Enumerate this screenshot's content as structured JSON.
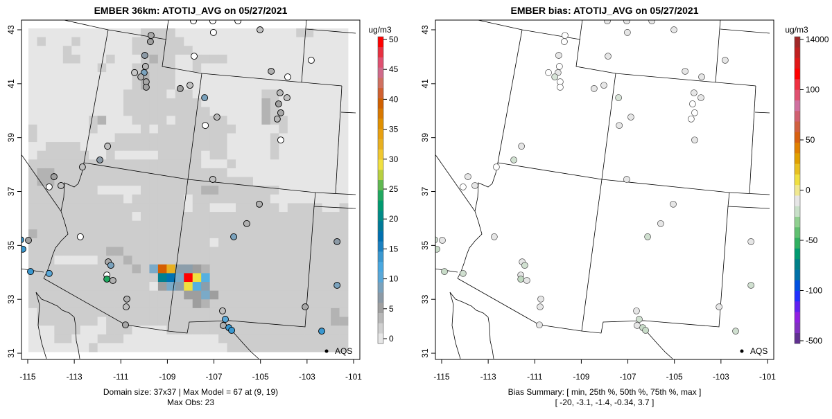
{
  "panels": [
    {
      "title": "EMBER 36km: ATOTIJ_AVG on 05/27/2021",
      "caption_lines": [
        "Domain size: 37x37 | Max Model = 67 at (9, 19)",
        "Max Obs: 23"
      ],
      "legend_label": "AQS",
      "colorbar": {
        "unit": "ug/m3",
        "labels": [
          "0",
          "5",
          "10",
          "15",
          "20",
          "25",
          "30",
          "35",
          "40",
          "45",
          "50"
        ],
        "colors": [
          "#e6e6e6",
          "#d0d0d0",
          "#b8b8b8",
          "#a0a0a0",
          "#8c9aa6",
          "#7aa2bd",
          "#5aa8d8",
          "#4aa8e0",
          "#3a98d0",
          "#1a80c0",
          "#0070b0",
          "#007a98",
          "#008a88",
          "#009a70",
          "#20a860",
          "#60b850",
          "#b8d040",
          "#f0e040",
          "#f0c830",
          "#e8b020",
          "#e8a010",
          "#e09000",
          "#d87800",
          "#d06000",
          "#d06030",
          "#d07060",
          "#d06a8a",
          "#e05070",
          "#e83040",
          "#ff0000"
        ]
      }
    },
    {
      "title": "EMBER bias: ATOTIJ_AVG on 05/27/2021",
      "caption_lines": [
        "Bias Summary: [ min, 25th %, 50th %, 75th %, max ]",
        "[ -20,  -3.1,  -1.4,  -0.34,  3.7 ]"
      ],
      "legend_label": "AQS",
      "colorbar": {
        "unit": "ug/m3",
        "labels": [
          "-500",
          "-100",
          "-50",
          "0",
          "50",
          "100",
          "14000"
        ],
        "colors": [
          "#603090",
          "#8030c0",
          "#9020e0",
          "#6020f0",
          "#2030ff",
          "#0050e0",
          "#0070a8",
          "#008088",
          "#009a70",
          "#30b060",
          "#60c070",
          "#90d090",
          "#c8e0c8",
          "#e6e6e6",
          "#f0e890",
          "#f0e040",
          "#e8c020",
          "#e0a000",
          "#e08000",
          "#d86010",
          "#d06040",
          "#d06070",
          "#d070a0",
          "#e05070",
          "#f03040",
          "#ff0000",
          "#e01818",
          "#c02020",
          "#a02828"
        ]
      }
    }
  ],
  "chart_data": {
    "type": "heatmap",
    "x_ticks": [
      "-115",
      "-113",
      "-111",
      "-109",
      "-107",
      "-105",
      "-103",
      "-101"
    ],
    "y_ticks": [
      "31",
      "33",
      "35",
      "37",
      "39",
      "41",
      "43"
    ],
    "xlim": [
      -115.27,
      -100.74
    ],
    "ylim": [
      30.77,
      43.36
    ],
    "grid_legend": {
      "a": 0.5,
      "b": 2,
      "c": 4,
      "d": 5.5,
      "e": 7,
      "f": 9,
      "g": 12,
      "h": 17,
      "i": 20,
      "j": 28,
      "k": 33,
      "l": 40,
      "m": 50
    },
    "grid_colors": {
      "a": "#e6e6e6",
      "b": "#cdcdcd",
      "c": "#b3b3b3",
      "d": "#9e9e9e",
      "e": "#8c9eab",
      "f": "#7aaac8",
      "g": "#56b0e0",
      "h": "#0072b2",
      "i": "#00808f",
      "j": "#f0e040",
      "k": "#e8b020",
      "l": "#d55e00",
      "m": "#ff0000"
    },
    "grid_rows": [
      "aaaaaaaaaaaaabbbbaaaaaaaaaaaaaabbaaaa",
      "abaaabaaaaaabbbbbbaaaaaaaaaaaaaaaaaaa",
      "aaaabaaaaaaabbbbbbbaaaaaaaaaaaaaaaaaa",
      "aaaabbaaabaaabcbbaabbbbaaaaaaaaaaaaaa",
      "aaaaaaaabaaabbbbbaabaaaaaaaaaaaaaaaaa",
      "aaaaaaaaaaaabcbbbaaaaaaaaaaaaaaaaaaaa",
      "aaaaaaaaaaaabcbbbaaaaaaaaaaaaaaaaaaaa",
      "aaaaaaaaaaabbbbbabbaaaaaaaabbaaaaaaaa",
      "aaaaaaaaaaabbbbbbbbbaaaaaaacbaaaaaaaa",
      "aaaaaaaaaaabbbbbbbbbbaaaaaacbaaaaaaaa",
      "aaaaaaabcaaabbbbabbbbbbaaaacbbaaaaaaa",
      "baaaaaabaaaaababbbbbbbbbaaaaabaaaaaaa",
      "baaaaaaaaabbbbbbbbbbbbbaaaaabaaaaaaaa",
      "aabbbbaaabbbbbbbbbbbbbbaaaaabaaaaaaaa",
      "abbbbbbaabaaaaabbbbbabbaaaaabaaaaaaaa",
      "bbbbbbbbbbbbbbbbbbbbaaabaaaaaaaaaaaaa",
      "bccbbbbbbbbbbbbbbbbbbbbaaaaaaaaaaaaaa",
      "bccbbbbbbbbbbbbbbbbbbbbbbbaaaaaaaaaaa",
      "bbbbbbbbaaaaabbbbbbbccbbbbbbbaaaaaaaa",
      "bbbbbbbbbbbabbbbbbabbbbbbbbbaaaaaaaaa",
      "bbbbbbbbbbbbbbbbbbabbaaabbbbbabbbbaab",
      "bbbbbbbbbbbbabbbbbbbbbbbbbbbbbbbbbbbb",
      "bbbbbbbbbbbbbbbbbbbbbbbbbbbbbbbbbbbbb",
      "cbbbbbbbbbbbbbbbbbbbbbbbbbbbbbbbbbbbb",
      "bbbbbbbbbbbbbbbbbbbbbabbbbbbbbbbbbbbb",
      "bbbbbbbbbccbbbbbbbbbbbbbbbbbbbbbbbbbb",
      "bbbaaaaabbbcbbbbbbbbbbbbbbbbbbbbbbbbb",
      "bbbbbbbbbbbbcbflkeedcbbbbbbbbbbbbbbbb",
      "bbbbbbbbbbbbbbbihfmjgbbbbbbbbbbbbbbbb",
      "bbbbbbbbbbbbbbadfejgebbbbbbbbbbbbbbbb",
      "bbbbbbbbbbbbbbbbbbddfdbbbbbbbbbbbbbbb",
      "bbbbbbbbbbbbbbbbbbbdcbbbbbbbbbbbbbbbb",
      "abbbbbbbbbbbbbbbbbbbbbbbbbbbbbbbbbbcb",
      "abbbbbbbabbbbbbbbbbbbbbbbbbbbbbbbbbcc",
      "aaabbbaaabbbaaaabbbbbbbbbbbbbbbbbbbbb",
      "aaabbaaabbbaaaaaaaaaaabbbbbbbbbbbbbbb",
      "aaaaaaabaaaaaaaaaaaaaaabbbbbbbbbbbbbb"
    ],
    "stations": [
      {
        "lon": -107.88,
        "lat": 43.33,
        "obs": "#ffffff",
        "bias": "#e6e6e6"
      },
      {
        "lon": -107.05,
        "lat": 43.33,
        "obs": "#ffffff",
        "bias": "#e6e6e6"
      },
      {
        "lon": -105.97,
        "lat": 43.33,
        "obs": "#ffffff",
        "bias": "#e6e6e6"
      },
      {
        "lon": -105.02,
        "lat": 43.0,
        "obs": "#c0c0c0",
        "bias": "#e6e6e6"
      },
      {
        "lon": -107.02,
        "lat": 42.9,
        "obs": "#ffffff",
        "bias": "#e6e6e6"
      },
      {
        "lon": -109.7,
        "lat": 42.79,
        "obs": "#a8a8a8",
        "bias": "#ffffff"
      },
      {
        "lon": -109.73,
        "lat": 42.56,
        "obs": "#a0a0a0",
        "bias": "#ffffff"
      },
      {
        "lon": -109.97,
        "lat": 42.05,
        "obs": "#8c9aa6",
        "bias": "#e6e6e6"
      },
      {
        "lon": -109.94,
        "lat": 41.64,
        "obs": "#b8b8b8",
        "bias": "#ffffff"
      },
      {
        "lon": -110.41,
        "lat": 41.41,
        "obs": "#c8c8c8",
        "bias": "#ffffff"
      },
      {
        "lon": -110.0,
        "lat": 41.41,
        "obs": "#7aa2bd",
        "bias": "#e6e6e6"
      },
      {
        "lon": -110.14,
        "lat": 41.25,
        "obs": "#b0b0b0",
        "bias": "#d8e4d8"
      },
      {
        "lon": -109.91,
        "lat": 41.07,
        "obs": "#a8a8a8",
        "bias": "#ffffff"
      },
      {
        "lon": -109.91,
        "lat": 40.87,
        "obs": "#a0a0a0",
        "bias": "#ffffff"
      },
      {
        "lon": -107.85,
        "lat": 42.02,
        "obs": "#ffffff",
        "bias": "#e6e6e6"
      },
      {
        "lon": -108.45,
        "lat": 40.82,
        "obs": "#a0a0a0",
        "bias": "#e6e6e6"
      },
      {
        "lon": -108.03,
        "lat": 40.94,
        "obs": "#c0c0c0",
        "bias": "#e6e6e6"
      },
      {
        "lon": -107.4,
        "lat": 40.48,
        "obs": "#7aa2bd",
        "bias": "#d8e4d8"
      },
      {
        "lon": -104.54,
        "lat": 41.46,
        "obs": "#b0b0b0",
        "bias": "#e6e6e6"
      },
      {
        "lon": -103.83,
        "lat": 41.25,
        "obs": "#ffffff",
        "bias": "#e6e6e6"
      },
      {
        "lon": -102.82,
        "lat": 41.87,
        "obs": "#ffffff",
        "bias": "#e6e6e6"
      },
      {
        "lon": -104.16,
        "lat": 40.66,
        "obs": "#b8b8b8",
        "bias": "#e6e6e6"
      },
      {
        "lon": -103.86,
        "lat": 40.48,
        "obs": "#c0c0c0",
        "bias": "#e6e6e6"
      },
      {
        "lon": -104.22,
        "lat": 40.25,
        "obs": "#a0a0a0",
        "bias": "#ffffff"
      },
      {
        "lon": -104.13,
        "lat": 39.92,
        "obs": "#a8a8a8",
        "bias": "#ffffff"
      },
      {
        "lon": -104.28,
        "lat": 39.69,
        "obs": "#b8b8b8",
        "bias": "#ffffff"
      },
      {
        "lon": -106.87,
        "lat": 39.76,
        "obs": "#b8b8b8",
        "bias": "#e6e6e6"
      },
      {
        "lon": -107.37,
        "lat": 39.45,
        "obs": "#ffffff",
        "bias": "#e6e6e6"
      },
      {
        "lon": -104.13,
        "lat": 38.91,
        "obs": "#ffffff",
        "bias": "#e6e6e6"
      },
      {
        "lon": -111.57,
        "lat": 38.68,
        "obs": "#c0c0c0",
        "bias": "#e6e6e6"
      },
      {
        "lon": -111.9,
        "lat": 38.17,
        "obs": "#8c9aa6",
        "bias": "#d0e0d0"
      },
      {
        "lon": -112.65,
        "lat": 37.91,
        "obs": "#c0c0c0",
        "bias": "#ffffff"
      },
      {
        "lon": -113.87,
        "lat": 37.55,
        "obs": "#a0a0a0",
        "bias": "#e6e6e6"
      },
      {
        "lon": -114.08,
        "lat": 37.17,
        "obs": "#ffffff",
        "bias": "#ffffff"
      },
      {
        "lon": -113.57,
        "lat": 37.22,
        "obs": "#c0c0c0",
        "bias": "#e6e6e6"
      },
      {
        "lon": -107.05,
        "lat": 37.45,
        "obs": "#c0c0c0",
        "bias": "#e6e6e6"
      },
      {
        "lon": -105.05,
        "lat": 36.53,
        "obs": "#b0b0b0",
        "bias": "#e6e6e6"
      },
      {
        "lon": -105.59,
        "lat": 35.81,
        "obs": "#b0b0b0",
        "bias": "#e6e6e6"
      },
      {
        "lon": -106.15,
        "lat": 35.32,
        "obs": "#7aa2bd",
        "bias": "#d0e0d0"
      },
      {
        "lon": -112.74,
        "lat": 35.32,
        "obs": "#ffffff",
        "bias": "#e6e6e6"
      },
      {
        "lon": -115.3,
        "lat": 35.21,
        "obs": "#3a98d0",
        "bias": "#d0e0d0"
      },
      {
        "lon": -114.97,
        "lat": 35.19,
        "obs": "#a0a0a0",
        "bias": "#e6e6e6"
      },
      {
        "lon": -115.21,
        "lat": 34.86,
        "obs": "#3a98d0",
        "bias": "#c8dcc8"
      },
      {
        "lon": -101.71,
        "lat": 35.14,
        "obs": "#8c9aa6",
        "bias": "#e6e6e6"
      },
      {
        "lon": -111.54,
        "lat": 34.39,
        "obs": "#a8a8a8",
        "bias": "#e6e6e6"
      },
      {
        "lon": -111.43,
        "lat": 34.26,
        "obs": "#7aa2bd",
        "bias": "#d0e0d0"
      },
      {
        "lon": -111.6,
        "lat": 33.9,
        "obs": "#ffffff",
        "bias": "#e6e6e6"
      },
      {
        "lon": -111.6,
        "lat": 33.75,
        "obs": "#20a860",
        "bias": "#c0d8c0"
      },
      {
        "lon": -111.34,
        "lat": 33.7,
        "obs": "#b0b0b0",
        "bias": "#e6e6e6"
      },
      {
        "lon": -110.74,
        "lat": 33.01,
        "obs": "#b0b0b0",
        "bias": "#e6e6e6"
      },
      {
        "lon": -110.77,
        "lat": 32.72,
        "obs": "#c0c0c0",
        "bias": "#e6e6e6"
      },
      {
        "lon": -114.88,
        "lat": 34.03,
        "obs": "#3a98d0",
        "bias": "#c8dcc8"
      },
      {
        "lon": -114.08,
        "lat": 33.96,
        "obs": "#5aa8d8",
        "bias": "#d0e0d0"
      },
      {
        "lon": -110.8,
        "lat": 32.05,
        "obs": "#a8a8a8",
        "bias": "#e6e6e6"
      },
      {
        "lon": -106.63,
        "lat": 32.57,
        "obs": "#c0c0c0",
        "bias": "#e6e6e6"
      },
      {
        "lon": -106.51,
        "lat": 32.26,
        "obs": "#5aa8d8",
        "bias": "#d0e0d0"
      },
      {
        "lon": -106.6,
        "lat": 32.03,
        "obs": "#b0b0b0",
        "bias": "#e6e6e6"
      },
      {
        "lon": -106.36,
        "lat": 31.95,
        "obs": "#3a98d0",
        "bias": "#c8dcc8"
      },
      {
        "lon": -106.24,
        "lat": 31.85,
        "obs": "#3a98d0",
        "bias": "#c8dcc8"
      },
      {
        "lon": -103.08,
        "lat": 32.72,
        "obs": "#a8a8a8",
        "bias": "#e6e6e6"
      },
      {
        "lon": -101.71,
        "lat": 33.52,
        "obs": "#7aa2bd",
        "bias": "#d0e0d0"
      },
      {
        "lon": -102.37,
        "lat": 31.82,
        "obs": "#3a98d0",
        "bias": "#d0e0d0"
      }
    ]
  }
}
